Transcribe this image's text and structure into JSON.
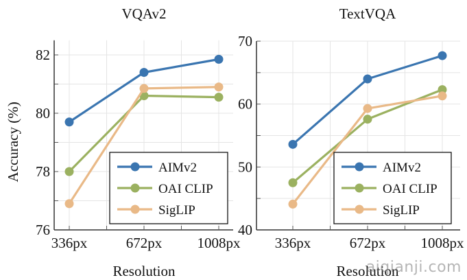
{
  "chart_data": [
    {
      "type": "line",
      "title": "VQAv2",
      "xlabel": "Resolution",
      "ylabel": "Accuracy (%)",
      "categories": [
        "336px",
        "672px",
        "1008px"
      ],
      "ylim": [
        76,
        82.5
      ],
      "yticks": [
        76,
        78,
        80,
        82
      ],
      "grid": true,
      "legend_position": "bottom-right",
      "series": [
        {
          "name": "AIMv2",
          "color": "#3a75b0",
          "values": [
            79.7,
            81.4,
            81.85
          ]
        },
        {
          "name": "OAI CLIP",
          "color": "#9bb160",
          "values": [
            78.0,
            80.6,
            80.55
          ]
        },
        {
          "name": "SigLIP",
          "color": "#e9b987",
          "values": [
            76.9,
            80.85,
            80.9
          ]
        }
      ]
    },
    {
      "type": "line",
      "title": "TextVQA",
      "xlabel": "Resolution",
      "ylabel": "",
      "categories": [
        "336px",
        "672px",
        "1008px"
      ],
      "ylim": [
        40,
        70
      ],
      "yticks": [
        40,
        50,
        60,
        70
      ],
      "grid": true,
      "legend_position": "bottom-right",
      "series": [
        {
          "name": "AIMv2",
          "color": "#3a75b0",
          "values": [
            53.6,
            64.0,
            67.7
          ]
        },
        {
          "name": "OAI CLIP",
          "color": "#9bb160",
          "values": [
            47.5,
            57.6,
            62.3
          ]
        },
        {
          "name": "SigLIP",
          "color": "#e9b987",
          "values": [
            44.1,
            59.3,
            61.3
          ]
        }
      ]
    }
  ],
  "watermark": "aiqianji.com"
}
